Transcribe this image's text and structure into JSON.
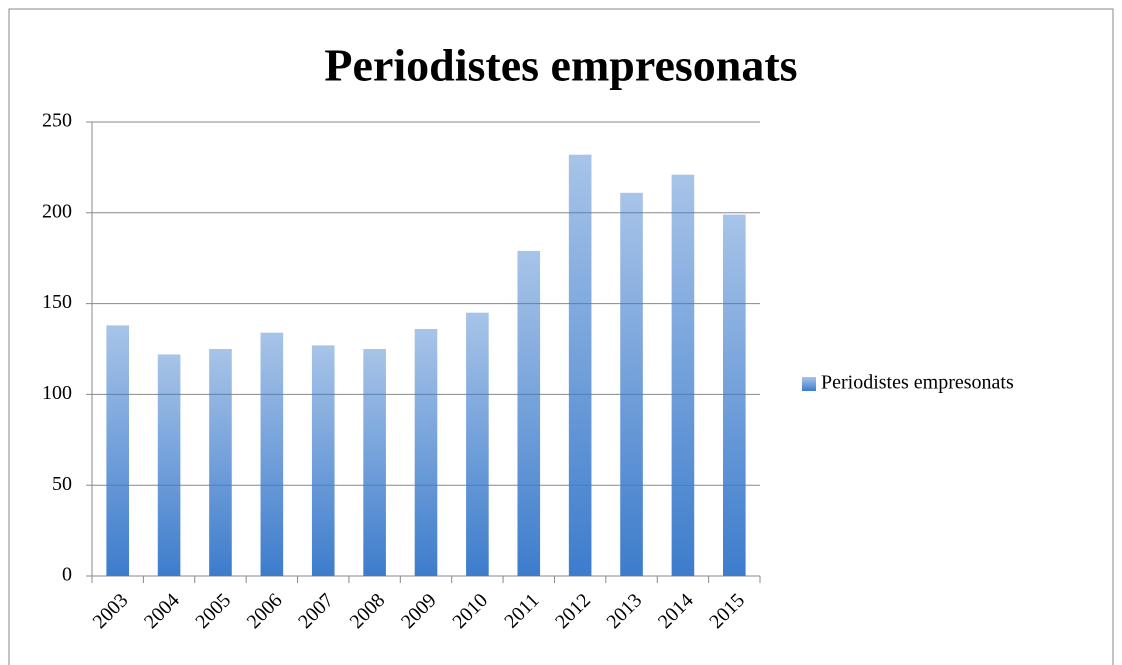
{
  "chart_data": {
    "type": "bar",
    "title": "Periodistes empresonats",
    "categories": [
      "2003",
      "2004",
      "2005",
      "2006",
      "2007",
      "2008",
      "2009",
      "2010",
      "2011",
      "2012",
      "2013",
      "2014",
      "2015"
    ],
    "series": [
      {
        "name": "Periodistes empresonats",
        "color": "#3d7ccc",
        "values": [
          138,
          122,
          125,
          134,
          127,
          125,
          136,
          145,
          179,
          232,
          211,
          221,
          199
        ]
      }
    ],
    "ylim": [
      0,
      250
    ],
    "yticks": [
      0,
      50,
      100,
      150,
      200,
      250
    ],
    "grid": true,
    "legend": "right"
  }
}
